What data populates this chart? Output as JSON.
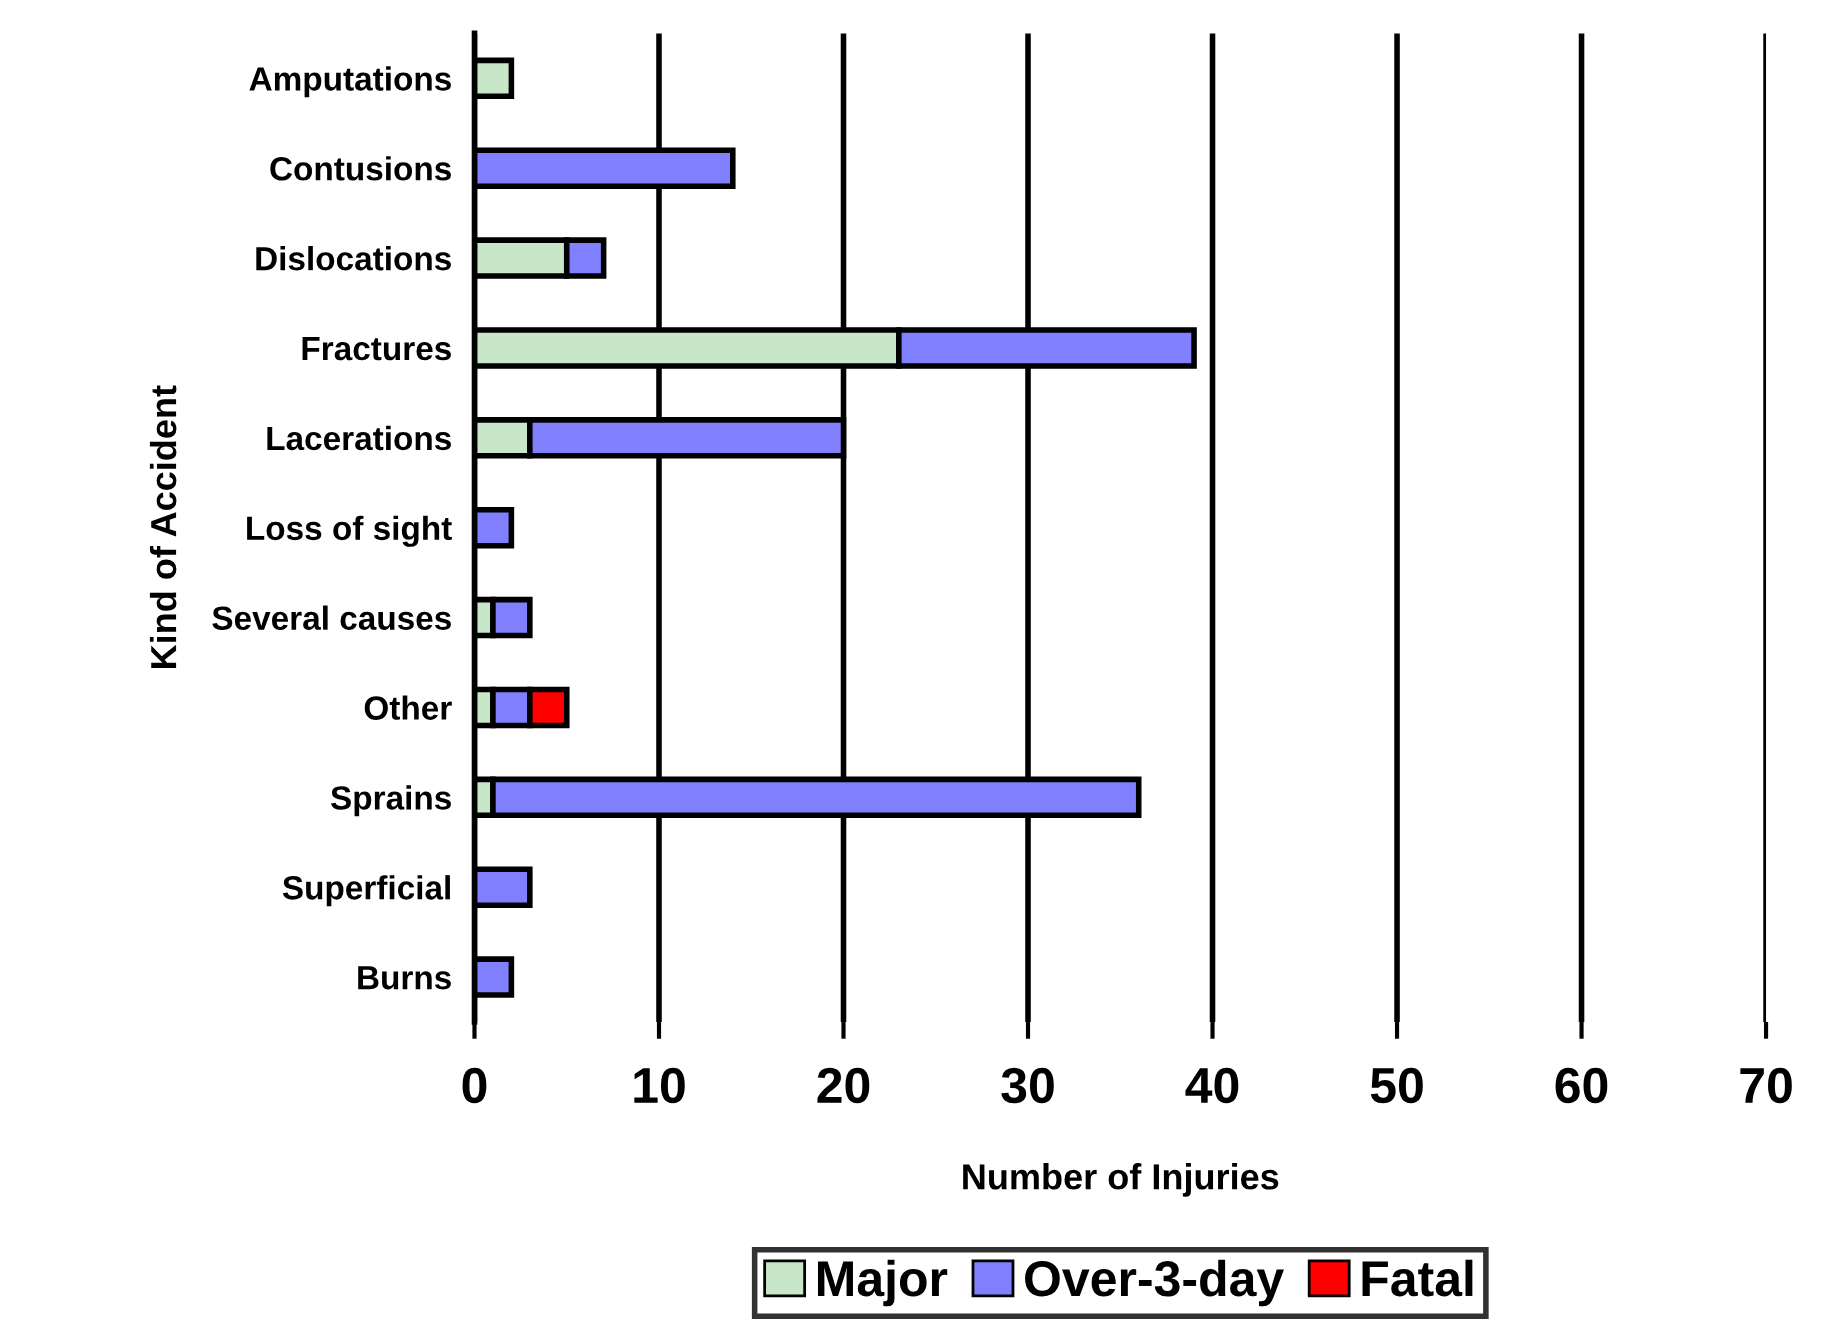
{
  "chart_data": {
    "type": "bar",
    "orientation": "horizontal",
    "stacked": true,
    "xlabel": "Number of Injuries",
    "ylabel": "Kind of Accident",
    "categories": [
      "Amputations",
      "Contusions",
      "Dislocations",
      "Fractures",
      "Lacerations",
      "Loss of sight",
      "Several causes",
      "Other",
      "Sprains",
      "Superficial",
      "Burns"
    ],
    "series": [
      {
        "name": "Major",
        "color": "#c8e6c8",
        "values": [
          2,
          0,
          5,
          23,
          3,
          0,
          1,
          1,
          1,
          0,
          0
        ]
      },
      {
        "name": "Over-3-day",
        "color": "#8080ff",
        "values": [
          0,
          14,
          2,
          16,
          17,
          2,
          2,
          2,
          35,
          3,
          2
        ]
      },
      {
        "name": "Fatal",
        "color": "#ff0000",
        "values": [
          0,
          0,
          0,
          0,
          0,
          0,
          0,
          2,
          0,
          0,
          0
        ]
      }
    ],
    "xlim": [
      0,
      70
    ],
    "xticks": [
      0,
      10,
      20,
      30,
      40,
      50,
      60,
      70
    ],
    "grid": "x",
    "legend": "bottom"
  }
}
